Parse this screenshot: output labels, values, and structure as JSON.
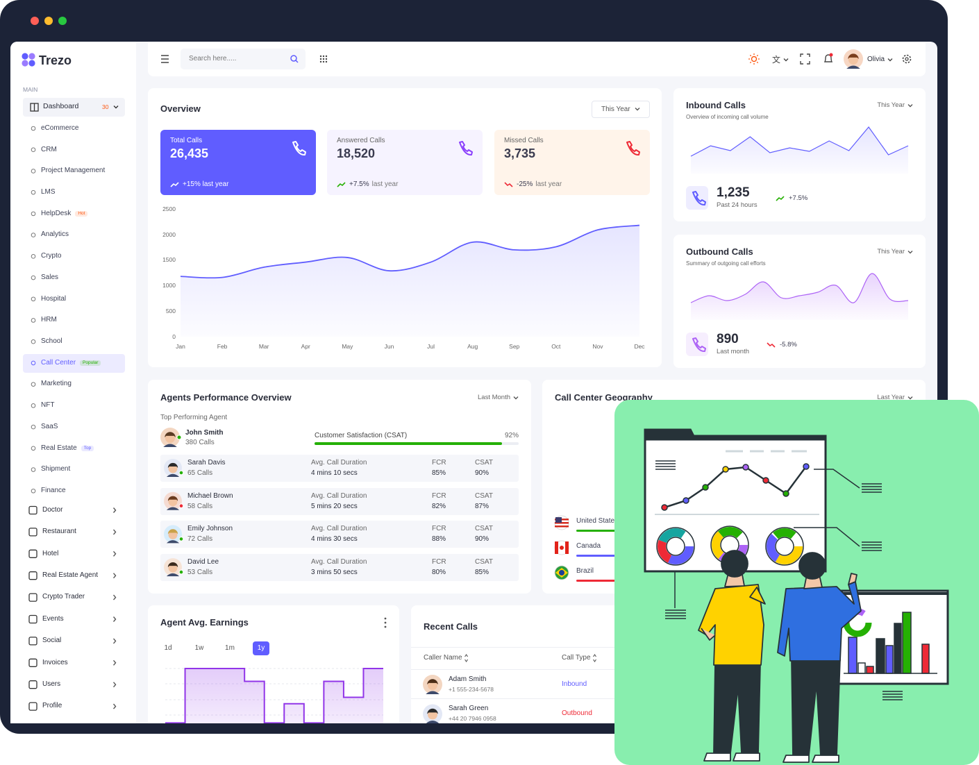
{
  "sidebar": {
    "brand": "Trezo",
    "section": "MAIN",
    "menu": [
      {
        "label": "Dashboard",
        "badge": "30",
        "badge_color": "#fd5812",
        "children": [
          {
            "label": "eCommerce"
          },
          {
            "label": "CRM"
          },
          {
            "label": "Project Management"
          },
          {
            "label": "LMS"
          },
          {
            "label": "HelpDesk",
            "badge": "Hot",
            "badge_color": "#fd5812"
          },
          {
            "label": "Analytics"
          },
          {
            "label": "Crypto"
          },
          {
            "label": "Sales"
          },
          {
            "label": "Hospital"
          },
          {
            "label": "HRM"
          },
          {
            "label": "School"
          },
          {
            "label": "Call Center",
            "badge": "Popular",
            "badge_color": "#25b003",
            "active": true
          },
          {
            "label": "Marketing"
          },
          {
            "label": "NFT"
          },
          {
            "label": "SaaS"
          },
          {
            "label": "Real Estate",
            "badge": "Top",
            "badge_color": "#605dff"
          },
          {
            "label": "Shipment"
          },
          {
            "label": "Finance"
          }
        ]
      },
      {
        "label": "Doctor"
      },
      {
        "label": "Restaurant"
      },
      {
        "label": "Hotel"
      },
      {
        "label": "Real Estate Agent"
      },
      {
        "label": "Crypto Trader"
      },
      {
        "label": "Events"
      },
      {
        "label": "Social"
      },
      {
        "label": "Invoices"
      },
      {
        "label": "Users"
      },
      {
        "label": "Profile"
      }
    ]
  },
  "header": {
    "search_placeholder": "Search here.....",
    "user": "Olivia"
  },
  "overview": {
    "title": "Overview",
    "filter": "This Year",
    "stats": [
      {
        "label": "Total Calls",
        "value": "26,435",
        "change": "+15% last year"
      },
      {
        "label": "Answered Calls",
        "value": "18,520",
        "change": "+7.5%",
        "note": "last year"
      },
      {
        "label": "Missed Calls",
        "value": "3,735",
        "change": "-25%",
        "note": "last year"
      }
    ],
    "chart": {
      "type": "area",
      "categories": [
        "Jan",
        "Feb",
        "Mar",
        "Apr",
        "May",
        "Jun",
        "Jul",
        "Aug",
        "Sep",
        "Oct",
        "Nov",
        "Dec"
      ],
      "values": [
        1180,
        1160,
        1360,
        1460,
        1550,
        1290,
        1460,
        1850,
        1700,
        1760,
        2090,
        2180
      ],
      "ylim": [
        0,
        2500
      ],
      "yticks": [
        0,
        500,
        1000,
        1500,
        2000,
        2500
      ],
      "color": "#605dff"
    }
  },
  "inbound": {
    "title": "Inbound Calls",
    "subtitle": "Overview of incoming call volume",
    "filter": "This Year",
    "value": "1,235",
    "period": "Past 24 hours",
    "change": "+7.5%",
    "chart": {
      "type": "line",
      "values": [
        25,
        40,
        33,
        53,
        30,
        37,
        32,
        47,
        33,
        67,
        27,
        40
      ],
      "color": "#605dff"
    }
  },
  "outbound": {
    "title": "Outbound Calls",
    "subtitle": "Summary of outgoing call efforts",
    "filter": "This Year",
    "value": "890",
    "period": "Last month",
    "change": "-5.8%",
    "chart": {
      "type": "area",
      "values": [
        25,
        35,
        28,
        37,
        55,
        32,
        35,
        40,
        50,
        25,
        67,
        30,
        28
      ],
      "color": "#ad63f6"
    }
  },
  "agents": {
    "title": "Agents Performance Overview",
    "filter": "Last Month",
    "top_label": "Top Performing Agent",
    "top": {
      "name": "John Smith",
      "calls": "380 Calls",
      "metric": "Customer Satisfaction (CSAT)",
      "value": 92,
      "value_label": "92%"
    },
    "columns": [
      "Avg. Call Duration",
      "FCR",
      "CSAT"
    ],
    "rows": [
      {
        "name": "Sarah Davis",
        "calls": "65 Calls",
        "duration": "4 mins 10 secs",
        "fcr": "85%",
        "csat": "90%"
      },
      {
        "name": "Michael Brown",
        "calls": "58 Calls",
        "duration": "5 mins 20 secs",
        "fcr": "82%",
        "csat": "87%"
      },
      {
        "name": "Emily Johnson",
        "calls": "72 Calls",
        "duration": "4 mins 30 secs",
        "fcr": "88%",
        "csat": "90%"
      },
      {
        "name": "David Lee",
        "calls": "53 Calls",
        "duration": "3 mins 50 secs",
        "fcr": "80%",
        "csat": "85%"
      }
    ]
  },
  "geography": {
    "title": "Call Center Geography",
    "filter": "Last Year",
    "countries": [
      {
        "name": "United States",
        "color": "#25b003"
      },
      {
        "name": "Canada",
        "color": "#605dff"
      },
      {
        "name": "Brazil",
        "color": "#ee2a36"
      }
    ]
  },
  "earnings": {
    "title": "Agent Avg. Earnings",
    "tabs": [
      "1d",
      "1w",
      "1m",
      "1y"
    ],
    "active_tab": 3,
    "chart": {
      "type": "step",
      "values": [
        5,
        90,
        90,
        90,
        70,
        5,
        35,
        5,
        70,
        45,
        90
      ],
      "color": "#9135e8"
    }
  },
  "recent_calls": {
    "title": "Recent Calls",
    "columns": [
      "Caller Name",
      "Call Type"
    ],
    "rows": [
      {
        "name": "Adam Smith",
        "phone": "+1 555-234-5678",
        "type": "Inbound",
        "type_color": "#605dff"
      },
      {
        "name": "Sarah Green",
        "phone": "+44 20 7946 0958",
        "type": "Outbound",
        "type_color": "#ee2a36"
      }
    ]
  }
}
